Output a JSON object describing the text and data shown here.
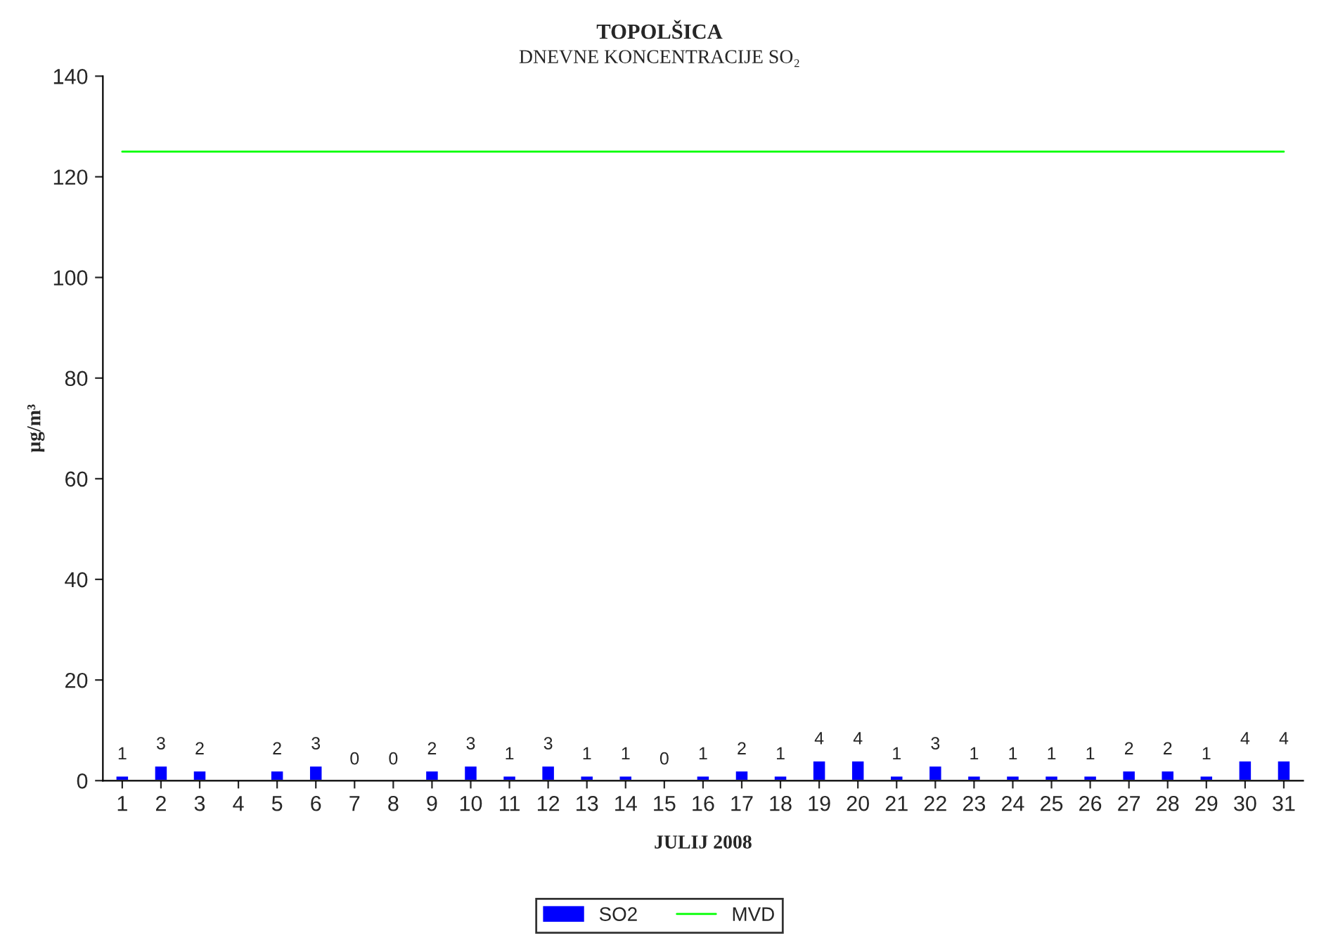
{
  "chart_data": {
    "type": "bar",
    "title": "TOPOLŠICA",
    "subtitle": "DNEVNE KONCENTRACIJE SO₂",
    "xlabel": "JULIJ 2008",
    "ylabel": "µg/m³",
    "categories": [
      "1",
      "2",
      "3",
      "4",
      "5",
      "6",
      "7",
      "8",
      "9",
      "10",
      "11",
      "12",
      "13",
      "14",
      "15",
      "16",
      "17",
      "18",
      "19",
      "20",
      "21",
      "22",
      "23",
      "24",
      "25",
      "26",
      "27",
      "28",
      "29",
      "30",
      "31"
    ],
    "series": [
      {
        "name": "SO2",
        "color": "#0000ff",
        "values": [
          1,
          3,
          2,
          null,
          2,
          3,
          0,
          0,
          2,
          3,
          1,
          3,
          1,
          1,
          0,
          1,
          2,
          1,
          4,
          4,
          1,
          3,
          1,
          1,
          1,
          1,
          2,
          2,
          1,
          4,
          4
        ],
        "value_labels": [
          "1",
          "3",
          "2",
          null,
          "2",
          "3",
          "0",
          "0",
          "2",
          "3",
          "1",
          "3",
          "1",
          "1",
          "0",
          "1",
          "2",
          "1",
          "4",
          "4",
          "1",
          "3",
          "1",
          "1",
          "1",
          "1",
          "2",
          "2",
          "1",
          "4",
          "4"
        ]
      },
      {
        "name": "MVD",
        "type": "line",
        "color": "#00ff00",
        "values": [
          125,
          125,
          125,
          125,
          125,
          125,
          125,
          125,
          125,
          125,
          125,
          125,
          125,
          125,
          125,
          125,
          125,
          125,
          125,
          125,
          125,
          125,
          125,
          125,
          125,
          125,
          125,
          125,
          125,
          125,
          125
        ]
      }
    ],
    "ylim": [
      0,
      140
    ],
    "yticks": [
      0,
      20,
      40,
      60,
      80,
      100,
      120,
      140
    ],
    "grid": false,
    "legend": "bottom"
  }
}
